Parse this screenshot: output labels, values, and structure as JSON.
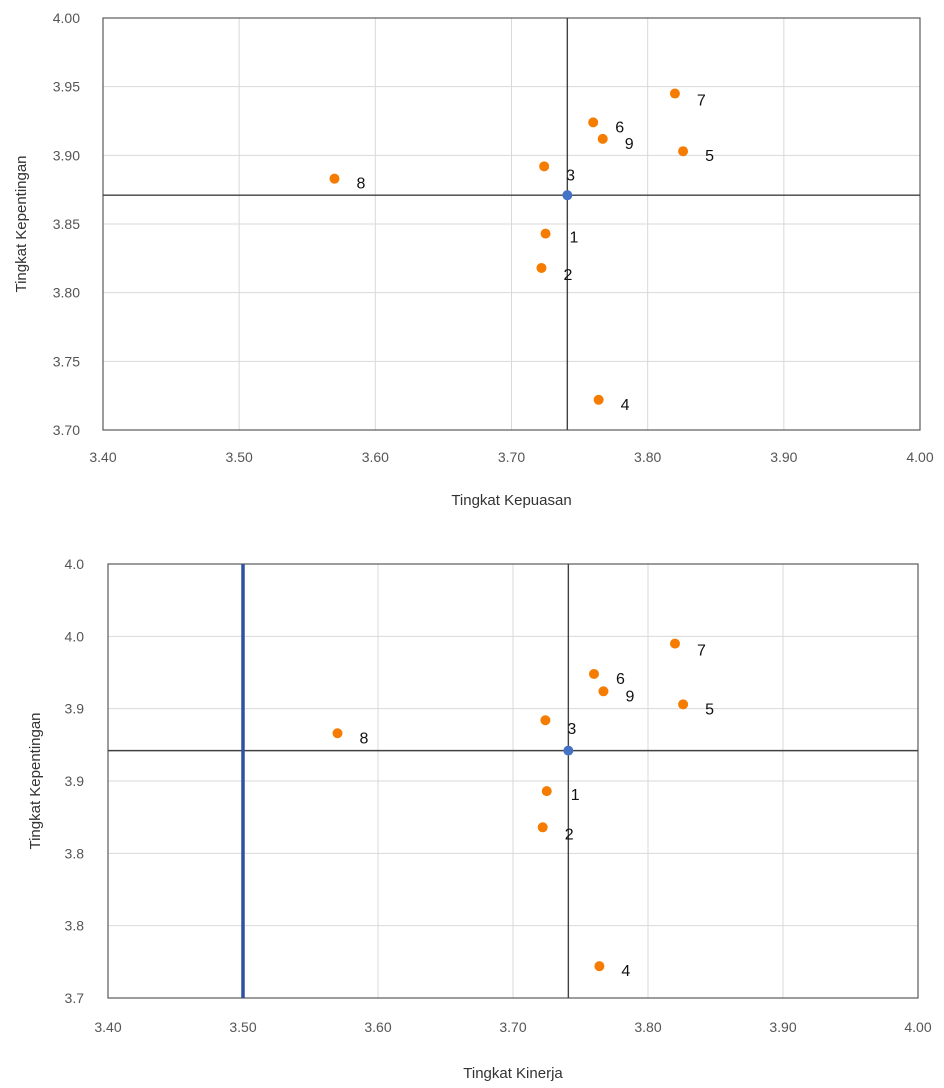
{
  "chart_data": [
    {
      "type": "scatter",
      "xlabel": "Tingkat Kepuasan",
      "ylabel": "Tingkat Kepentingan",
      "xlim": [
        3.4,
        4.0
      ],
      "ylim": [
        3.7,
        4.0
      ],
      "x_ticks": [
        "3.40",
        "3.50",
        "3.60",
        "3.70",
        "3.80",
        "3.90",
        "4.00"
      ],
      "y_ticks": [
        "3.70",
        "3.75",
        "3.80",
        "3.85",
        "3.90",
        "3.95",
        "4.00"
      ],
      "grid": true,
      "points": [
        {
          "label": "1",
          "x": 3.725,
          "y": 3.843
        },
        {
          "label": "2",
          "x": 3.722,
          "y": 3.818
        },
        {
          "label": "3",
          "x": 3.724,
          "y": 3.892
        },
        {
          "label": "4",
          "x": 3.764,
          "y": 3.722
        },
        {
          "label": "5",
          "x": 3.826,
          "y": 3.903
        },
        {
          "label": "6",
          "x": 3.76,
          "y": 3.924
        },
        {
          "label": "7",
          "x": 3.82,
          "y": 3.945
        },
        {
          "label": "8",
          "x": 3.57,
          "y": 3.883
        },
        {
          "label": "9",
          "x": 3.767,
          "y": 3.912
        }
      ],
      "center": {
        "x": 3.741,
        "y": 3.871
      },
      "point_color": "#f57c00",
      "center_color": "#4472c4"
    },
    {
      "type": "scatter",
      "xlabel": "Tingkat Kinerja",
      "ylabel": "Tingkat Kepentingan",
      "xlim": [
        3.4,
        4.0
      ],
      "ylim": [
        3.7,
        4.0
      ],
      "x_ticks": [
        "3.40",
        "3.50",
        "3.60",
        "3.70",
        "3.80",
        "3.90",
        "4.00"
      ],
      "y_ticks": [
        "3.7",
        "3.8",
        "3.8",
        "3.9",
        "3.9",
        "4.0",
        "4.0"
      ],
      "grid": true,
      "points": [
        {
          "label": "1",
          "x": 3.725,
          "y": 3.843
        },
        {
          "label": "2",
          "x": 3.722,
          "y": 3.818
        },
        {
          "label": "3",
          "x": 3.724,
          "y": 3.892
        },
        {
          "label": "4",
          "x": 3.764,
          "y": 3.722
        },
        {
          "label": "5",
          "x": 3.826,
          "y": 3.903
        },
        {
          "label": "6",
          "x": 3.76,
          "y": 3.924
        },
        {
          "label": "7",
          "x": 3.82,
          "y": 3.945
        },
        {
          "label": "8",
          "x": 3.57,
          "y": 3.883
        },
        {
          "label": "9",
          "x": 3.767,
          "y": 3.912
        }
      ],
      "center": {
        "x": 3.741,
        "y": 3.871
      },
      "vline": {
        "x": 3.5,
        "color": "#2f52a0"
      },
      "point_color": "#f57c00",
      "center_color": "#4472c4"
    }
  ]
}
